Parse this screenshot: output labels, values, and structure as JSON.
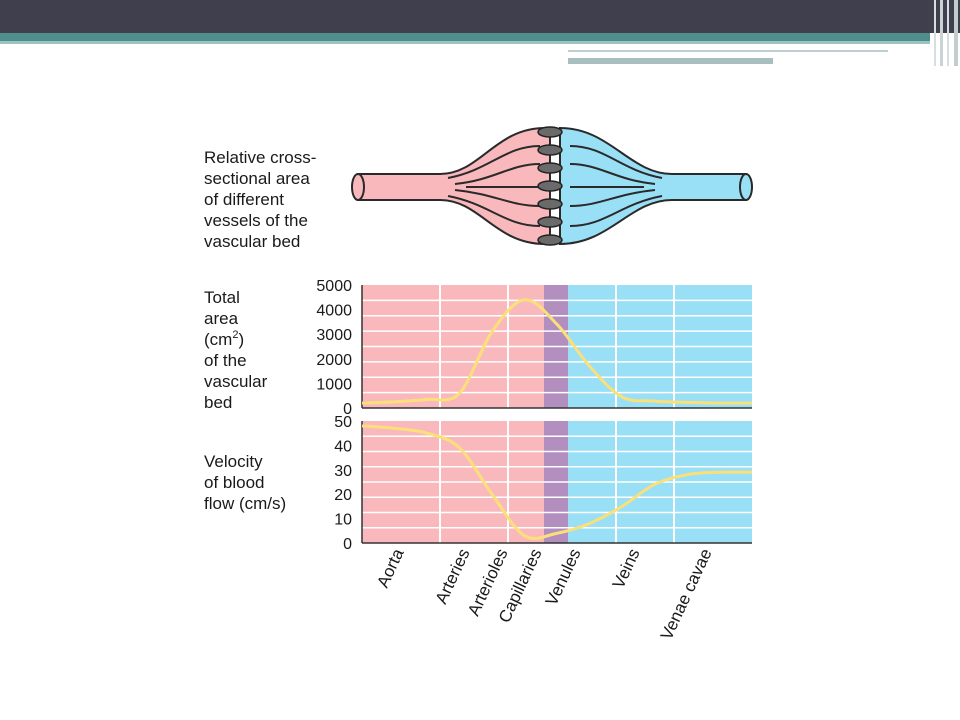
{
  "slide": {
    "accent_colors": {
      "top_bar": "#3f3f4e",
      "stripe": "#4e8f8c",
      "arterial": "#f9b9bc",
      "capillary": "#b38fc0",
      "venous": "#99dff5",
      "curve": "#fbe07a"
    }
  },
  "diagram": {
    "label_lines": [
      "Relative cross-",
      "sectional area",
      "of different",
      "vessels of the",
      "vascular bed"
    ]
  },
  "chart_data": [
    {
      "type": "line",
      "ylabel_lines": [
        "Total",
        "area",
        "(cm",
        "2",
        ")",
        "of the",
        "vascular",
        "bed"
      ],
      "yticks": [
        0,
        1000,
        2000,
        3000,
        4000,
        5000
      ],
      "ylim": [
        0,
        5000
      ],
      "grid": true,
      "x": [
        0,
        0.5,
        1,
        1.5,
        2,
        2.5,
        3,
        3.5,
        4,
        4.5,
        5,
        5.5,
        6
      ],
      "values": [
        200,
        250,
        350,
        600,
        3100,
        4400,
        3400,
        1700,
        450,
        280,
        230,
        200,
        200
      ]
    },
    {
      "type": "line",
      "ylabel_lines": [
        "Velocity",
        "of blood",
        "flow (cm/s)"
      ],
      "yticks": [
        0,
        10,
        20,
        30,
        40,
        50
      ],
      "ylim": [
        0,
        50
      ],
      "grid": true,
      "x": [
        0,
        0.5,
        1,
        1.5,
        2,
        2.5,
        3,
        3.5,
        4,
        4.5,
        5,
        5.5,
        6
      ],
      "values": [
        48,
        47,
        45,
        39,
        20,
        3,
        4,
        8,
        15,
        24,
        28,
        29,
        29
      ]
    }
  ],
  "x_categories": [
    "Aorta",
    "Arteries",
    "Arterioles",
    "Capillaries",
    "Venules",
    "Veins",
    "Venae cavae"
  ]
}
